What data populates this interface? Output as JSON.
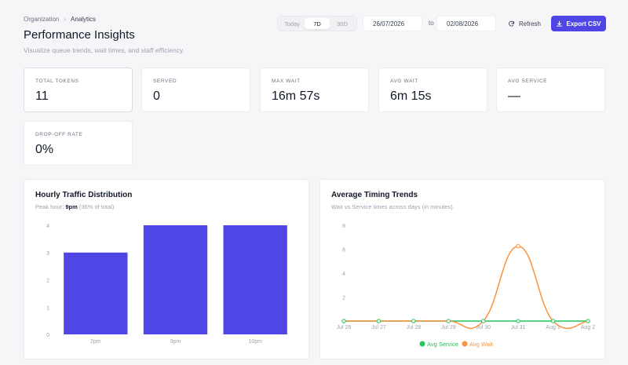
{
  "breadcrumb": {
    "parent": "Organization",
    "separator": "›",
    "current": "Analytics"
  },
  "page": {
    "title": "Performance Insights",
    "subtitle": "Visualize queue trends, wait times, and staff efficiency."
  },
  "range_selector": {
    "options": [
      "Today",
      "7D",
      "30D"
    ],
    "selected": "7D"
  },
  "date_range": {
    "start": "26/07/2026",
    "to_label": "to",
    "end": "02/08/2026"
  },
  "actions": {
    "refresh_label": "Refresh",
    "export_label": "Export CSV"
  },
  "colors": {
    "accent": "#4f46e5",
    "avg_service": "#22c55e",
    "avg_wait": "#fb923c"
  },
  "stats": [
    {
      "label": "TOTAL TOKENS",
      "value": "11"
    },
    {
      "label": "SERVED",
      "value": "0"
    },
    {
      "label": "MAX WAIT",
      "value": "16m 57s"
    },
    {
      "label": "AVG WAIT",
      "value": "6m 15s"
    },
    {
      "label": "AVG SERVICE",
      "value": "—"
    },
    {
      "label": "DROP-OFF RATE",
      "value": "0%"
    }
  ],
  "traffic": {
    "title": "Hourly Traffic Distribution",
    "peak_prefix": "Peak hour: ",
    "peak_value": "9pm",
    "peak_suffix": " (36% of total)"
  },
  "timing": {
    "title": "Average Timing Trends",
    "subtitle": "Wait vs Service times across days (in minutes)."
  },
  "chart_data": [
    {
      "type": "bar",
      "title": "Hourly Traffic Distribution",
      "categories": [
        "2pm",
        "9pm",
        "10pm"
      ],
      "values": [
        3,
        4,
        4
      ],
      "ylim": [
        0,
        4
      ],
      "yticks": [
        0,
        1,
        2,
        3,
        4
      ],
      "grid": false,
      "color": "#4f46e5"
    },
    {
      "type": "line",
      "title": "Average Timing Trends",
      "categories": [
        "Jul 26",
        "Jul 27",
        "Jul 28",
        "Jul 29",
        "Jul 30",
        "Jul 31",
        "Aug 1",
        "Aug 2"
      ],
      "series": [
        {
          "name": "Avg Service",
          "values": [
            0,
            0,
            0,
            0,
            0,
            0,
            0,
            0
          ],
          "color": "#22c55e"
        },
        {
          "name": "Avg Wait",
          "values": [
            0,
            0,
            0,
            0,
            0,
            6.25,
            0,
            0
          ],
          "color": "#fb923c"
        }
      ],
      "ylim": [
        0,
        8
      ],
      "yticks": [
        0,
        2,
        4,
        6,
        8
      ],
      "grid": false,
      "legend": "bottom"
    }
  ]
}
